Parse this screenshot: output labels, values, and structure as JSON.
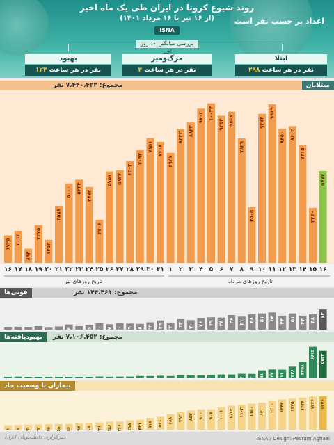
{
  "header": {
    "title": "روند شیوع کرونا در ایران طی یک ماه اخیر",
    "subtitle": "(از ۱۶ تیر تا ۱۶ مرداد ۱۴۰۱)",
    "agency": "ISNA",
    "hourly_note": "اعداد بر حسب نفر است",
    "avg_note": "بررسی میانگین ۱۰ روز اخیر",
    "cards": [
      {
        "label": "بهبود",
        "value": "۱۲۳",
        "unit": "نفر در هر ساعت"
      },
      {
        "label": "مرگ‌ومیر",
        "value": "۳",
        "unit": "نفر در هر ساعت"
      },
      {
        "label": "ابتلا",
        "value": "۲۹۸",
        "unit": "نفر در هر ساعت"
      }
    ]
  },
  "sections": {
    "infected": {
      "label": "مبتلایان",
      "total": "مجموع: ۷،۴۴۰،۴۲۲ نفر"
    },
    "deaths": {
      "label": "فوتی‌ها",
      "total": "مجموع: ۱۴۴،۴۶۱ نفر"
    },
    "recovered": {
      "label": "بهبودیافته‌ها",
      "total": "مجموع: ۷،۱۰۶،۴۵۲ نفر"
    },
    "severe": {
      "label": "بیماران با وضعیت حاد"
    }
  },
  "axis": {
    "tir_label": "تاریخ روزهای تیر",
    "mordad_label": "تاریخ روزهای مرداد"
  },
  "footer": {
    "credit": "ISNA / Design: Pedram Aghaei",
    "logo": "خبرگزاری دانشجویان ایران"
  },
  "colors": {
    "banner": "#2a9d93",
    "infected_bar": "#f29b4c",
    "infected_bg": "#fde9d4",
    "infected_last": "#8bc34a",
    "deaths_bar": "#8a8a8a",
    "deaths_last": "#5a5a5a",
    "recovered_bar": "#2e8b57",
    "severe_bar": "#f5d48a"
  },
  "chart_data": [
    {
      "type": "bar",
      "title": "مبتلایان",
      "categories": [
        "۱۶",
        "۱۷",
        "۱۸",
        "۱۹",
        "۲۰",
        "۲۱",
        "۲۲",
        "۲۳",
        "۲۴",
        "۲۵",
        "۲۶",
        "۲۷",
        "۲۸",
        "۲۹",
        "۳۰",
        "۳۱",
        "۱",
        "۲",
        "۳",
        "۴",
        "۵",
        "۶",
        "۷",
        "۸",
        "۹",
        "۱۰",
        "۱۱",
        "۱۲",
        "۱۳",
        "۱۴",
        "۱۵",
        "۱۶"
      ],
      "values": [
        1725,
        2013,
        894,
        2375,
        1453,
        3588,
        5000,
        5234,
        4772,
        2706,
        5751,
        5827,
        6403,
        7093,
        7851,
        7618,
        6921,
        8443,
        8833,
        9703,
        10034,
        9252,
        9506,
        7829,
        3505,
        9372,
        9969,
        8450,
        8604,
        7415,
        3460,
        5777
      ],
      "value_labels": [
        "۱۷۲۵",
        "۲۰۱۳",
        "۸۹۴",
        "۲۳۷۵",
        "۱۴۵۳",
        "۳۵۸۸",
        "۵۰۰۰",
        "۵۲۳۴",
        "۴۷۷۲",
        "۲۷۰۶",
        "۵۷۵۱",
        "۵۸۲۷",
        "۶۴۰۳",
        "۷۰۹۳",
        "۷۸۵۱",
        "۷۶۱۸",
        "۶۹۲۱",
        "۸۴۴۳",
        "۸۸۳۳",
        "۹۷۰۳",
        "۱۰۰۳۴",
        "۹۲۵۲",
        "۹۵۰۶",
        "۷۸۲۹",
        "۳۵۰۵",
        "۹۳۷۲",
        "۹۹۶۹",
        "۸۴۵۰",
        "۸۶۰۴",
        "۷۴۱۵",
        "۳۴۶۰",
        "۵۷۷۷"
      ],
      "ylim": [
        0,
        10500
      ]
    },
    {
      "type": "bar",
      "title": "فوتی‌ها",
      "values": [
        7,
        9,
        7,
        11,
        6,
        10,
        16,
        11,
        15,
        20,
        17,
        20,
        19,
        18,
        23,
        29,
        22,
        33,
        30,
        36,
        39,
        38,
        46,
        41,
        48,
        51,
        54,
        44,
        51,
        44,
        48,
        63
      ],
      "value_labels": [
        "۷",
        "۹",
        "۷",
        "۱۱",
        "۶",
        "۱۰",
        "۱۶",
        "۱۱",
        "۱۵",
        "۲۰",
        "۱۷",
        "۲۰",
        "۱۹",
        "۱۸",
        "۲۳",
        "۲۹",
        "۲۲",
        "۳۳",
        "۳۰",
        "۳۶",
        "۳۹",
        "۳۸",
        "۴۶",
        "۴۱",
        "۴۸",
        "۵۱",
        "۵۴",
        "۴۴",
        "۵۱",
        "۴۴",
        "۴۸",
        "۶۳"
      ],
      "ylim": [
        0,
        70
      ]
    },
    {
      "type": "bar",
      "title": "بهبودیافته‌ها",
      "values": [
        193,
        330,
        226,
        211,
        222,
        261,
        233,
        235,
        297,
        362,
        318,
        347,
        352,
        475,
        464,
        522,
        467,
        686,
        693,
        631,
        684,
        783,
        782,
        937,
        912,
        1651,
        1844,
        1811,
        2436,
        3458,
        6614,
        5733
      ],
      "value_labels": [
        "۱۹۳",
        "۳۳۰",
        "۲۲۶",
        "۲۱۱",
        "۲۲۲",
        "۲۶۱",
        "۲۳۳",
        "۲۳۵",
        "۲۹۷",
        "۳۶۲",
        "۳۱۸",
        "۳۴۷",
        "۳۵۲",
        "۴۷۵",
        "۴۶۴",
        "۵۲۲",
        "۴۶۷",
        "۶۸۶",
        "۶۹۳",
        "۶۳۱",
        "۶۸۴",
        "۷۸۳",
        "۷۸۲",
        "۹۳۷",
        "۹۱۲",
        "۱۶۵۱",
        "۱۸۴۴",
        "۱۸۱۱",
        "۲۴۳۶",
        "۳۴۵۸",
        "۶۶۱۴",
        "۵۷۳۳"
      ],
      "ylim": [
        0,
        7000
      ]
    },
    {
      "type": "bar",
      "title": "بیماران با وضعیت حاد",
      "values": [
        201,
        211,
        225,
        233,
        245,
        258,
        256,
        297,
        305,
        321,
        356,
        366,
        418,
        441,
        518,
        570,
        688,
        792,
        853,
        900,
        907,
        1001,
        1064,
        1103,
        1150,
        1200,
        1300,
        1344,
        1375,
        1424,
        1476,
        1476
      ],
      "value_labels": [
        "۲۰۱",
        "۲۱۱",
        "۲۲۵",
        "۲۳۳",
        "۲۴۵",
        "۲۵۸",
        "۲۵۶",
        "۲۹۷",
        "۳۰۵",
        "۳۲۱",
        "۳۵۶",
        "۳۶۶",
        "۴۱۸",
        "۴۴۱",
        "۵۱۸",
        "۵۷۰",
        "۶۸۸",
        "۷۹۲",
        "۸۵۳",
        "۹۰۰",
        "۹۰۷",
        "۱۰۰۱",
        "۱۰۶۴",
        "۱۱۰۳",
        "۱۱۵۰",
        "۱۲۰۰",
        "۱۳۰۰",
        "۱۳۴۴",
        "۱۳۷۵",
        "۱۴۲۴",
        "۱۴۷۶",
        "۱۴۷۶"
      ],
      "ylim": [
        0,
        1600
      ]
    }
  ]
}
